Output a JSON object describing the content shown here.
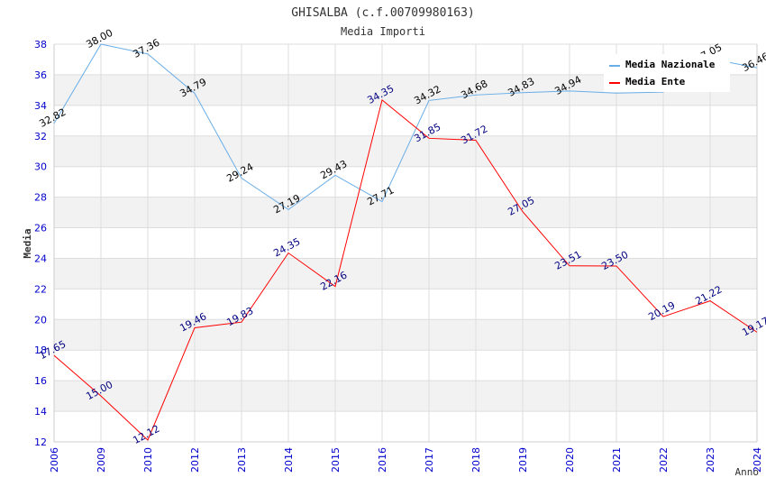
{
  "chart_data": {
    "type": "line",
    "title": "GHISALBA (c.f.00709980163)",
    "subtitle": "Media Importi",
    "xlabel": "Anno",
    "ylabel": "Media",
    "ylim": [
      12,
      38
    ],
    "yticks": [
      12,
      14,
      16,
      18,
      20,
      22,
      24,
      26,
      28,
      30,
      32,
      34,
      36,
      38
    ],
    "grid": true,
    "legend_position": "top-right",
    "categories": [
      "2006",
      "2009",
      "2010",
      "2012",
      "2013",
      "2014",
      "2015",
      "2016",
      "2017",
      "2018",
      "2019",
      "2020",
      "2021",
      "2022",
      "2023",
      "2024"
    ],
    "series": [
      {
        "name": "Media Nazionale",
        "color": "#6aaee8",
        "label_color": "#000000",
        "values": [
          32.82,
          38.0,
          37.36,
          34.79,
          29.24,
          27.19,
          29.43,
          27.71,
          34.32,
          34.68,
          34.83,
          34.94,
          null,
          null,
          37.05,
          36.46
        ],
        "plotted": [
          32.82,
          38.0,
          37.36,
          34.79,
          29.24,
          27.19,
          29.43,
          27.71,
          34.32,
          34.68,
          34.83,
          34.94,
          34.8,
          34.87,
          37.05,
          36.46
        ]
      },
      {
        "name": "Media Ente",
        "color": "#ff0000",
        "label_color": "#000080",
        "values": [
          17.65,
          15.0,
          12.12,
          19.46,
          19.83,
          24.35,
          22.16,
          34.35,
          31.85,
          31.72,
          27.05,
          23.51,
          23.5,
          20.19,
          21.22,
          19.17
        ],
        "plotted": [
          17.65,
          15.0,
          12.12,
          19.46,
          19.83,
          24.35,
          22.16,
          34.35,
          31.85,
          31.72,
          27.05,
          23.51,
          23.5,
          20.19,
          21.22,
          19.17
        ]
      }
    ]
  },
  "colors": {
    "tick_label": "#0000cc",
    "band": "#f2f2f2",
    "gridline": "#dddddd",
    "axis": "#cccccc",
    "text": "#333333"
  }
}
